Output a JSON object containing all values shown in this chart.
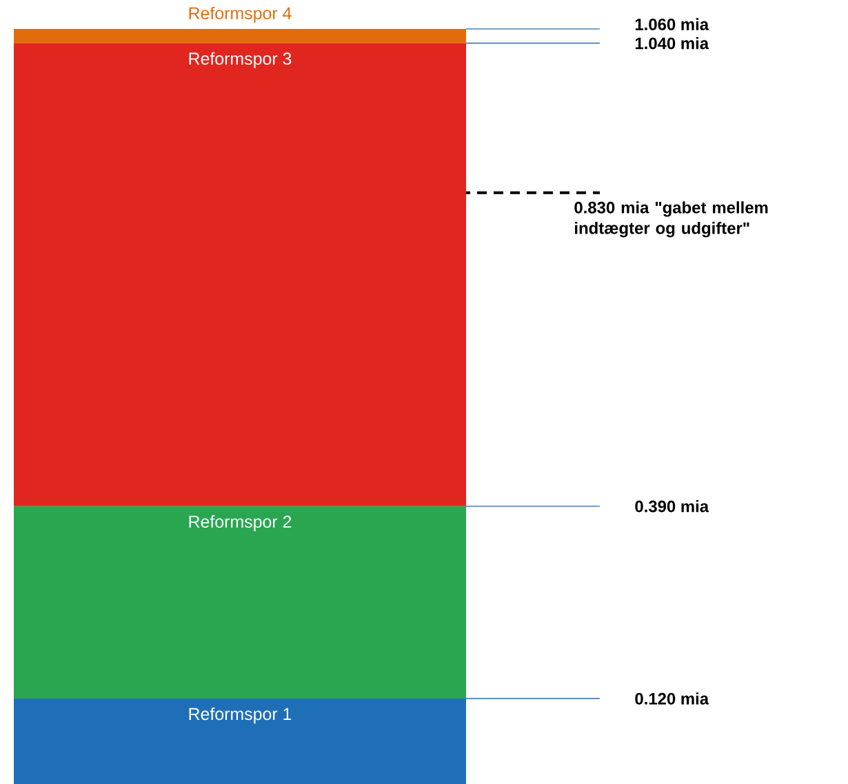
{
  "chart_data": {
    "type": "bar",
    "stacked": true,
    "categories": [
      null
    ],
    "tick_labels": "y",
    "ylim": [
      0,
      1.06
    ],
    "yticks": [
      {
        "value": 0.12,
        "label": "0.120 mia"
      },
      {
        "value": 0.39,
        "label": "0.390 mia"
      },
      {
        "value": 1.04,
        "label": "1.040 mia"
      },
      {
        "value": 1.06,
        "label": "1.060 mia"
      }
    ],
    "series": [
      {
        "name": "Reformspor 1",
        "color": "#1f6fb8",
        "values": [
          0.12
        ]
      },
      {
        "name": "Reformspor 2",
        "color": "#2aa651",
        "values": [
          0.27
        ]
      },
      {
        "name": "Reformspor 3",
        "color": "#e0261f",
        "values": [
          0.65
        ]
      },
      {
        "name": "Reformspor 4",
        "color": "#e36c0a",
        "values": [
          0.02
        ]
      }
    ],
    "ref_lines": [
      {
        "axis": "y",
        "value": 0.83,
        "label": "0.830 mia  \"gabet mellem indtægter og udgifter\"",
        "line_style": "dashed",
        "color": "#000000"
      }
    ]
  }
}
